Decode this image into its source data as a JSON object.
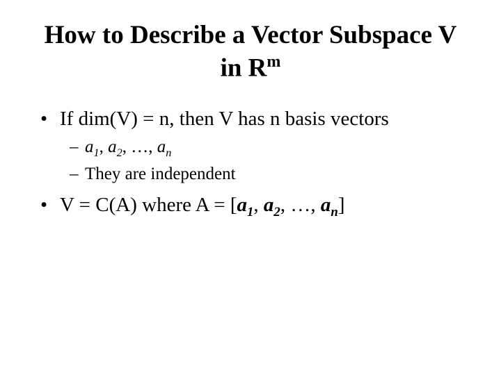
{
  "colors": {
    "background": "#ffffff",
    "text": "#000000"
  },
  "typography": {
    "title_fontsize": 37,
    "body_fontsize": 29,
    "sub_fontsize": 25,
    "font_family": "Times New Roman"
  },
  "title": {
    "pre": "How to Describe a Vector Subspace V in R",
    "sup": "m"
  },
  "bullets": [
    {
      "level": 1,
      "marker": "•",
      "segments": [
        {
          "t": "If dim(V) = n, then V has n basis vectors"
        }
      ]
    },
    {
      "level": 2,
      "marker": "–",
      "segments": [
        {
          "t": "a",
          "class": "it"
        },
        {
          "t": "1",
          "class": "it sub"
        },
        {
          "t": ", "
        },
        {
          "t": "a",
          "class": "it"
        },
        {
          "t": "2",
          "class": "it sub"
        },
        {
          "t": ", …, "
        },
        {
          "t": "a",
          "class": "it"
        },
        {
          "t": "n",
          "class": "it sub"
        }
      ]
    },
    {
      "level": 2,
      "marker": "–",
      "segments": [
        {
          "t": "They are independent"
        }
      ]
    },
    {
      "level": 1,
      "marker": "•",
      "segments": [
        {
          "t": "V = C(A) where A = ["
        },
        {
          "t": "a",
          "class": "bi"
        },
        {
          "t": "1",
          "class": "bi sub"
        },
        {
          "t": ", ",
          "class": ""
        },
        {
          "t": "a",
          "class": "bi"
        },
        {
          "t": "2",
          "class": "bi sub"
        },
        {
          "t": ", …, "
        },
        {
          "t": "a",
          "class": "bi"
        },
        {
          "t": "n",
          "class": "bi sub"
        },
        {
          "t": "]"
        }
      ]
    }
  ]
}
